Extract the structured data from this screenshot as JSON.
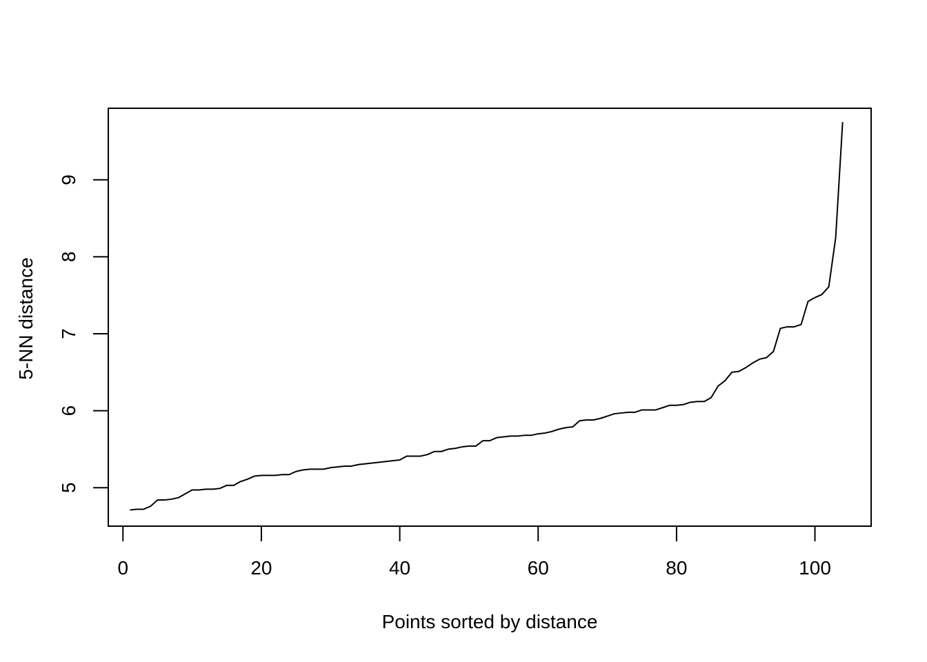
{
  "chart_data": {
    "type": "line",
    "title": "",
    "xlabel": "Points sorted by distance",
    "ylabel": "5-NN distance",
    "xlim": [
      -2.12,
      108.12
    ],
    "ylim": [
      4.5,
      9.93
    ],
    "x_ticks": [
      0,
      20,
      40,
      60,
      80,
      100
    ],
    "y_ticks": [
      5,
      6,
      7,
      8,
      9
    ],
    "grid": false,
    "legend": "none",
    "series": [
      {
        "color": "#000000",
        "x": [
          1,
          2,
          3,
          4,
          5,
          6,
          7,
          8,
          9,
          10,
          11,
          12,
          13,
          14,
          15,
          16,
          17,
          18,
          19,
          20,
          21,
          22,
          23,
          24,
          25,
          26,
          27,
          28,
          29,
          30,
          31,
          32,
          33,
          34,
          35,
          36,
          37,
          38,
          39,
          40,
          41,
          42,
          43,
          44,
          45,
          46,
          47,
          48,
          49,
          50,
          51,
          52,
          53,
          54,
          55,
          56,
          57,
          58,
          59,
          60,
          61,
          62,
          63,
          64,
          65,
          66,
          67,
          68,
          69,
          70,
          71,
          72,
          73,
          74,
          75,
          76,
          77,
          78,
          79,
          80,
          81,
          82,
          83,
          84,
          85,
          86,
          87,
          88,
          89,
          90,
          91,
          92,
          93,
          94,
          95,
          96,
          97,
          98,
          99,
          100,
          101,
          102,
          103,
          104
        ],
        "values": [
          4.71,
          4.72,
          4.72,
          4.76,
          4.84,
          4.84,
          4.85,
          4.87,
          4.92,
          4.97,
          4.97,
          4.98,
          4.98,
          4.99,
          5.03,
          5.03,
          5.08,
          5.11,
          5.15,
          5.16,
          5.16,
          5.16,
          5.17,
          5.17,
          5.21,
          5.23,
          5.24,
          5.24,
          5.24,
          5.26,
          5.27,
          5.28,
          5.28,
          5.3,
          5.31,
          5.32,
          5.33,
          5.34,
          5.35,
          5.36,
          5.41,
          5.41,
          5.41,
          5.43,
          5.47,
          5.47,
          5.5,
          5.51,
          5.53,
          5.54,
          5.54,
          5.61,
          5.61,
          5.65,
          5.66,
          5.67,
          5.67,
          5.68,
          5.68,
          5.7,
          5.71,
          5.73,
          5.76,
          5.78,
          5.79,
          5.87,
          5.88,
          5.88,
          5.9,
          5.93,
          5.96,
          5.97,
          5.98,
          5.98,
          6.01,
          6.01,
          6.01,
          6.04,
          6.07,
          6.07,
          6.08,
          6.11,
          6.12,
          6.12,
          6.17,
          6.32,
          6.39,
          6.5,
          6.51,
          6.56,
          6.62,
          6.67,
          6.69,
          6.77,
          7.07,
          7.09,
          7.09,
          7.12,
          7.42,
          7.47,
          7.51,
          7.61,
          8.25,
          9.75
        ]
      }
    ]
  }
}
